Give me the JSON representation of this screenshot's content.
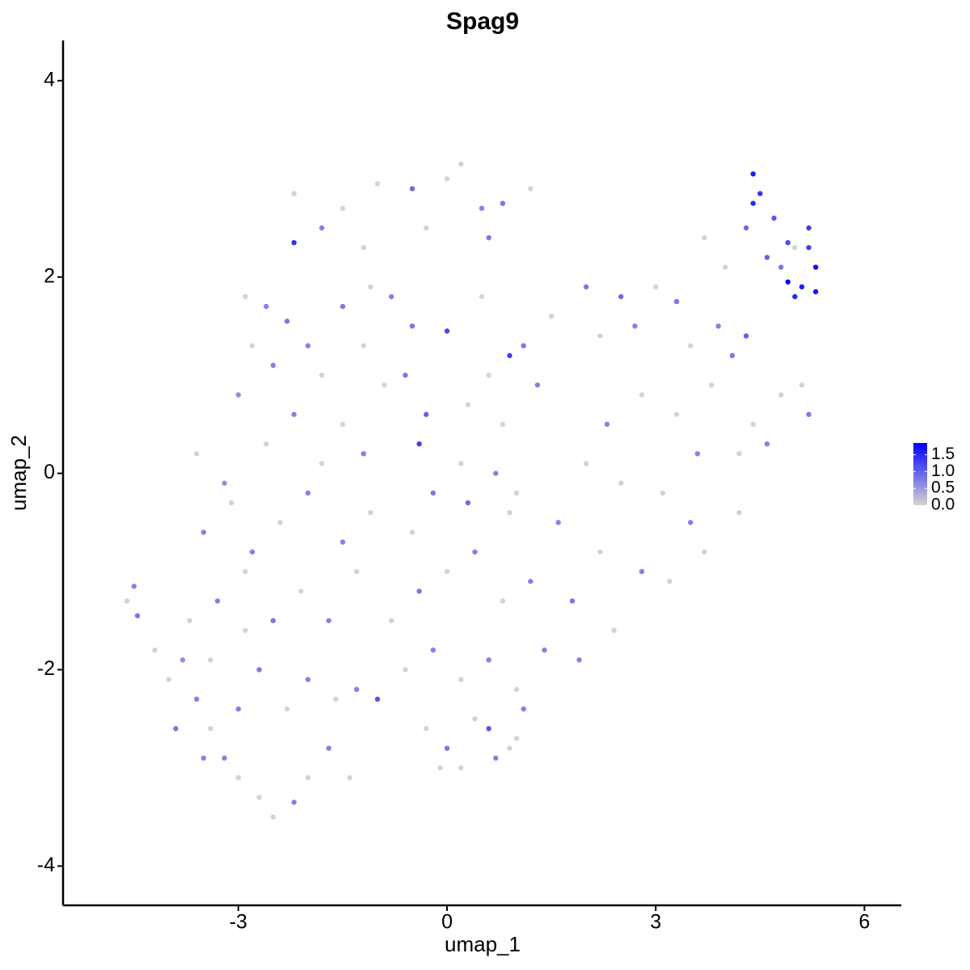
{
  "chart_data": {
    "type": "scatter",
    "title": "Spag9",
    "x_label": "umap_1",
    "y_label": "umap_2",
    "xlim": [
      -5.52,
      6.53
    ],
    "ylim": [
      -4.4,
      4.41
    ],
    "xticks": [
      -3,
      0,
      3,
      6
    ],
    "yticks": [
      -4,
      -2,
      0,
      2,
      4
    ],
    "color_low": "#d3d3d3",
    "color_high": "#0000ff",
    "color_lim": [
      0,
      1.85
    ],
    "color_ticks": [
      {
        "value": 0,
        "label": "0.0"
      },
      {
        "value": 0.5,
        "label": "0.5"
      },
      {
        "value": 1,
        "label": "1.0"
      },
      {
        "value": 1.5,
        "label": "1.5"
      }
    ],
    "legend": "right",
    "x": [
      -2.2,
      -1.5,
      -1.0,
      -0.5,
      0.0,
      0.2,
      0.5,
      0.8,
      -2.2,
      -1.8,
      -1.2,
      -0.3,
      0.6,
      1.2,
      -2.9,
      -2.6,
      -2.3,
      -2.0,
      -2.8,
      -1.5,
      -1.1,
      -0.8,
      -0.5,
      -2.5,
      -1.8,
      -1.2,
      -3.0,
      -2.2,
      -1.5,
      -0.9,
      -0.6,
      0.0,
      0.5,
      0.9,
      1.1,
      0.6,
      0.3,
      -0.3,
      -0.4,
      0.2,
      0.8,
      1.3,
      1.5,
      0.7,
      -0.2,
      0.3,
      1.0,
      2.0,
      2.5,
      3.0,
      3.3,
      3.7,
      4.0,
      2.2,
      2.7,
      3.5,
      3.9,
      4.3,
      4.1,
      2.3,
      2.8,
      3.3,
      3.8,
      4.4,
      4.8,
      5.1,
      5.2,
      4.2,
      4.6,
      3.6,
      3.1,
      3.5,
      2.5,
      2.0,
      1.6,
      2.2,
      2.8,
      3.2,
      3.7,
      4.2,
      1.8,
      2.4,
      1.9,
      4.4,
      4.5,
      4.7,
      4.9,
      5.2,
      5.3,
      5.1,
      4.9,
      5.0,
      5.3,
      4.6,
      4.3,
      4.8,
      5.0,
      4.4,
      5.2,
      -4.6,
      -4.5,
      -4.45,
      -4.2,
      -4.0,
      -3.8,
      -3.6,
      -3.4,
      -3.2,
      -3.0,
      -2.7,
      -2.5,
      -2.2,
      -2.0,
      -1.7,
      -1.4,
      -3.9,
      -3.5,
      -3.0,
      -2.7,
      -2.3,
      -2.0,
      -1.6,
      -1.3,
      -1.0,
      -3.7,
      -3.3,
      -2.9,
      -2.5,
      -2.1,
      -1.7,
      -1.3,
      -3.5,
      -3.1,
      -2.8,
      -2.4,
      -2.0,
      -1.5,
      -1.1,
      -3.6,
      -3.2,
      -2.6,
      -1.8,
      -1.2,
      -3.4,
      -2.9,
      -0.8,
      -0.4,
      0.0,
      0.4,
      0.8,
      1.2,
      -0.6,
      -0.2,
      0.2,
      0.6,
      1.0,
      1.4,
      -0.3,
      0.0,
      0.4,
      0.6,
      0.9,
      -0.1,
      0.2,
      0.7,
      1.0,
      1.1,
      -0.5,
      0.9
    ],
    "y": [
      2.85,
      2.7,
      2.95,
      2.9,
      3.0,
      3.15,
      2.7,
      2.75,
      2.35,
      2.5,
      2.3,
      2.5,
      2.4,
      2.9,
      1.8,
      1.7,
      1.55,
      1.3,
      1.3,
      1.7,
      1.9,
      1.8,
      1.5,
      1.1,
      1.0,
      1.3,
      0.8,
      0.6,
      0.5,
      0.9,
      1.0,
      1.45,
      1.8,
      1.2,
      1.3,
      1.0,
      0.7,
      0.6,
      0.3,
      0.1,
      0.5,
      0.9,
      1.6,
      0.0,
      -0.2,
      -0.3,
      -0.2,
      1.9,
      1.8,
      1.9,
      1.75,
      2.4,
      2.1,
      1.4,
      1.5,
      1.3,
      1.5,
      1.4,
      1.2,
      0.5,
      0.8,
      0.6,
      0.9,
      0.5,
      0.8,
      0.9,
      0.6,
      0.2,
      0.3,
      0.2,
      -0.2,
      -0.5,
      -0.1,
      0.1,
      -0.5,
      -0.8,
      -1.0,
      -1.1,
      -0.8,
      -0.4,
      -1.3,
      -1.6,
      -1.9,
      3.05,
      2.85,
      2.6,
      2.35,
      2.5,
      2.1,
      1.9,
      1.95,
      1.8,
      1.85,
      2.2,
      2.5,
      2.1,
      2.3,
      2.75,
      2.3,
      -1.3,
      -1.15,
      -1.45,
      -1.8,
      -2.1,
      -1.9,
      -2.3,
      -2.6,
      -2.9,
      -3.1,
      -3.3,
      -3.5,
      -3.35,
      -3.1,
      -2.8,
      -3.1,
      -2.6,
      -2.9,
      -2.4,
      -2.0,
      -2.4,
      -2.1,
      -2.3,
      -2.2,
      -2.3,
      -1.5,
      -1.3,
      -1.0,
      -1.5,
      -1.2,
      -1.5,
      -1.0,
      -0.6,
      -0.3,
      -0.8,
      -0.5,
      -0.2,
      -0.7,
      -0.4,
      0.2,
      -0.1,
      0.3,
      0.1,
      0.2,
      -1.9,
      -1.6,
      -1.5,
      -1.2,
      -1.0,
      -0.8,
      -1.3,
      -1.1,
      -2.0,
      -1.8,
      -2.1,
      -1.9,
      -2.2,
      -1.8,
      -2.6,
      -2.8,
      -2.5,
      -2.6,
      -2.8,
      -3.0,
      -3.0,
      -2.9,
      -2.7,
      -2.4,
      -0.6,
      -0.4
    ],
    "values": [
      0,
      0,
      0,
      0.9,
      0,
      0,
      0.7,
      0.8,
      1.4,
      0.7,
      0,
      0,
      0.8,
      0,
      0,
      0.7,
      0.8,
      0.7,
      0,
      0.8,
      0,
      0.7,
      0.8,
      0.7,
      0,
      0,
      0.6,
      0.7,
      0,
      0,
      0.8,
      1.2,
      0,
      1.3,
      0.8,
      0,
      0,
      1.0,
      1.3,
      0,
      0,
      0.7,
      0,
      0.7,
      0.8,
      0.9,
      0,
      0.8,
      0.9,
      0,
      0.8,
      0,
      0,
      0,
      0.7,
      0,
      0.7,
      1.0,
      0.8,
      0.7,
      0,
      0,
      0,
      0,
      0,
      0,
      0.8,
      0,
      0.7,
      0.7,
      0,
      0.7,
      0,
      0,
      0.7,
      0,
      0.7,
      0,
      0,
      0,
      0.8,
      0,
      0.7,
      1.6,
      1.4,
      1.1,
      1.2,
      1.3,
      1.7,
      1.6,
      1.8,
      1.5,
      1.7,
      1.0,
      0.9,
      0.8,
      0,
      1.5,
      1.3,
      0,
      0.7,
      0.8,
      0,
      0,
      0.6,
      0.7,
      0,
      0.7,
      0,
      0,
      0,
      0.7,
      0,
      0.7,
      0,
      0.8,
      0.7,
      0.7,
      0.8,
      0,
      0.7,
      0,
      0.7,
      1.1,
      0,
      0.7,
      0,
      0.8,
      0,
      0.7,
      0,
      0.7,
      0,
      0.7,
      0,
      0.7,
      0.7,
      0,
      0,
      0.6,
      0,
      0,
      0.7,
      0,
      0,
      0,
      0.8,
      0,
      0.7,
      0,
      0.7,
      0,
      0.7,
      0,
      0.7,
      0,
      0.7,
      0,
      0.8,
      0,
      1.1,
      0,
      0,
      0,
      0.7,
      0,
      0.7,
      0,
      0
    ]
  }
}
